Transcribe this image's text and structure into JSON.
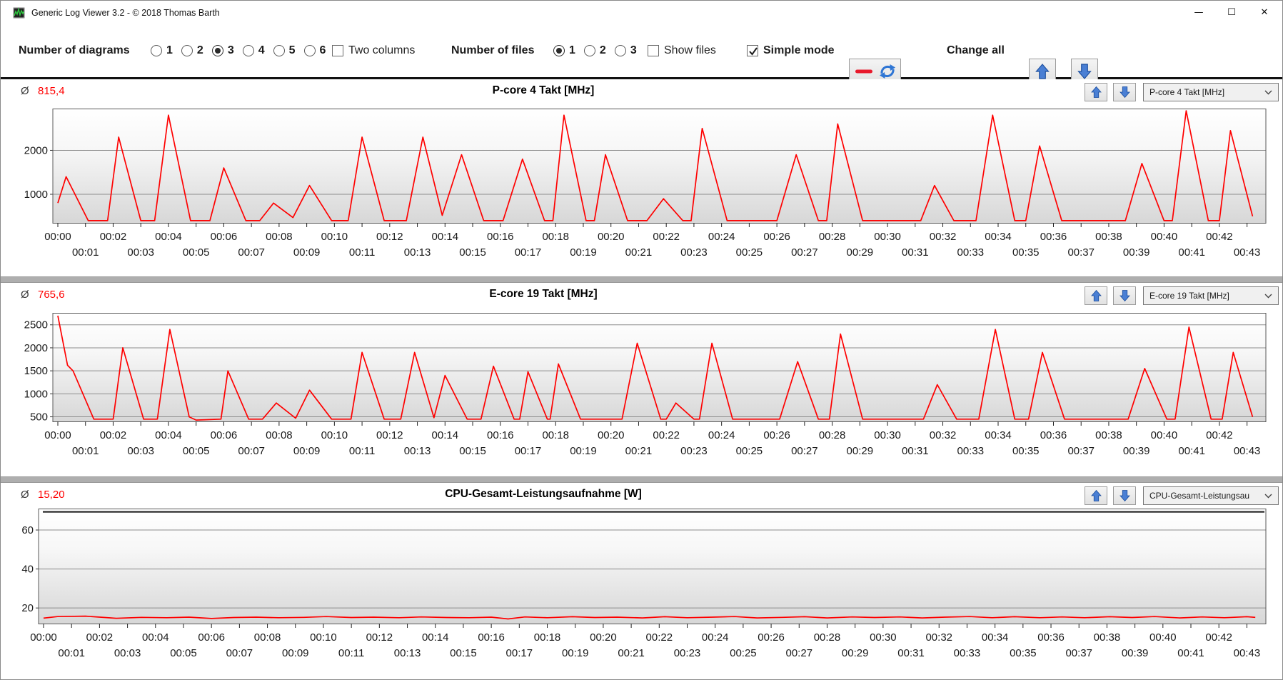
{
  "window": {
    "title": "Generic Log Viewer 3.2 - © 2018 Thomas Barth",
    "minimize_glyph": "—",
    "maximize_glyph": "☐",
    "close_glyph": "✕"
  },
  "toolbar": {
    "diagrams_label": "Number of diagrams",
    "diagram_options": [
      "1",
      "2",
      "3",
      "4",
      "5",
      "6"
    ],
    "diagrams_selected": "3",
    "two_columns_label": "Two columns",
    "two_columns_checked": false,
    "files_label": "Number of files",
    "file_options": [
      "1",
      "2",
      "3"
    ],
    "files_selected": "1",
    "show_files_label": "Show files",
    "show_files_checked": false,
    "simple_mode_label": "Simple mode",
    "simple_mode_checked": true,
    "change_all_label": "Change all"
  },
  "colors": {
    "series_red": "#ff0000",
    "avg_red": "#ff0000",
    "arrow_blue": "#4a7fd4",
    "grid_gray": "#8c8c8c",
    "plot_border": "#5a5a5a"
  },
  "x_axis": {
    "total_minutes": 43.5,
    "labels_row1": [
      "00:00",
      "00:02",
      "00:04",
      "00:06",
      "00:08",
      "00:10",
      "00:12",
      "00:14",
      "00:16",
      "00:18",
      "00:20",
      "00:22",
      "00:24",
      "00:26",
      "00:28",
      "00:30",
      "00:32",
      "00:34",
      "00:36",
      "00:38",
      "00:40",
      "00:42"
    ],
    "labels_row2": [
      "00:01",
      "00:03",
      "00:05",
      "00:07",
      "00:09",
      "00:11",
      "00:13",
      "00:15",
      "00:17",
      "00:19",
      "00:21",
      "00:23",
      "00:25",
      "00:27",
      "00:29",
      "00:31",
      "00:33",
      "00:35",
      "00:37",
      "00:39",
      "00:41",
      "00:43"
    ]
  },
  "chart_data": [
    {
      "type": "line",
      "title": "P-core 4 Takt [MHz]",
      "avg_symbol": "Ø",
      "average": "815,4",
      "dropdown_value": "P-core 4 Takt [MHz]",
      "ylim": [
        350,
        2950
      ],
      "y_ticks": [
        1000,
        2000
      ],
      "y_tick_labels": [
        "1000",
        "2000"
      ],
      "series": [
        {
          "name": "P-core 4 Takt",
          "color": "#ff0000",
          "points": [
            [
              0,
              800
            ],
            [
              0.3,
              1400
            ],
            [
              1.1,
              400
            ],
            [
              1.8,
              400
            ],
            [
              2.2,
              2300
            ],
            [
              3,
              400
            ],
            [
              3.5,
              400
            ],
            [
              4,
              2800
            ],
            [
              4.8,
              400
            ],
            [
              5.5,
              400
            ],
            [
              6,
              1600
            ],
            [
              6.8,
              400
            ],
            [
              7.3,
              400
            ],
            [
              7.8,
              800
            ],
            [
              8.5,
              470
            ],
            [
              9.1,
              1200
            ],
            [
              9.9,
              400
            ],
            [
              10.5,
              400
            ],
            [
              11,
              2300
            ],
            [
              11.8,
              400
            ],
            [
              12.6,
              400
            ],
            [
              13.2,
              2300
            ],
            [
              13.9,
              520
            ],
            [
              14.6,
              1900
            ],
            [
              15.4,
              400
            ],
            [
              16.1,
              400
            ],
            [
              16.8,
              1800
            ],
            [
              17.6,
              400
            ],
            [
              17.9,
              400
            ],
            [
              18.3,
              2800
            ],
            [
              19.1,
              400
            ],
            [
              19.4,
              400
            ],
            [
              19.8,
              1900
            ],
            [
              20.6,
              400
            ],
            [
              21.3,
              400
            ],
            [
              21.9,
              900
            ],
            [
              22.6,
              400
            ],
            [
              22.9,
              400
            ],
            [
              23.3,
              2500
            ],
            [
              24.2,
              400
            ],
            [
              26,
              400
            ],
            [
              26.7,
              1900
            ],
            [
              27.5,
              400
            ],
            [
              27.8,
              400
            ],
            [
              28.2,
              2600
            ],
            [
              29.1,
              400
            ],
            [
              31.2,
              400
            ],
            [
              31.7,
              1200
            ],
            [
              32.4,
              400
            ],
            [
              33.2,
              400
            ],
            [
              33.8,
              2800
            ],
            [
              34.6,
              400
            ],
            [
              35,
              400
            ],
            [
              35.5,
              2100
            ],
            [
              36.3,
              400
            ],
            [
              38.6,
              400
            ],
            [
              39.2,
              1700
            ],
            [
              40,
              400
            ],
            [
              40.3,
              400
            ],
            [
              40.8,
              2900
            ],
            [
              41.6,
              400
            ],
            [
              42,
              400
            ],
            [
              42.4,
              2450
            ],
            [
              43.2,
              500
            ]
          ]
        }
      ]
    },
    {
      "type": "line",
      "title": "E-core 19 Takt [MHz]",
      "avg_symbol": "Ø",
      "average": "765,6",
      "dropdown_value": "E-core 19 Takt [MHz]",
      "ylim": [
        400,
        2760
      ],
      "y_ticks": [
        500,
        1000,
        1500,
        2000,
        2500
      ],
      "y_tick_labels": [
        "500",
        "1000",
        "1500",
        "2000",
        "2500"
      ],
      "series": [
        {
          "name": "E-core 19 Takt",
          "color": "#ff0000",
          "points": [
            [
              0,
              2700
            ],
            [
              0.35,
              1620
            ],
            [
              0.55,
              1500
            ],
            [
              1.3,
              450
            ],
            [
              2,
              450
            ],
            [
              2.35,
              2000
            ],
            [
              3.1,
              450
            ],
            [
              3.6,
              450
            ],
            [
              4.05,
              2400
            ],
            [
              4.75,
              500
            ],
            [
              5,
              430
            ],
            [
              5.9,
              450
            ],
            [
              6.15,
              1500
            ],
            [
              6.9,
              450
            ],
            [
              7.4,
              450
            ],
            [
              7.9,
              800
            ],
            [
              8.6,
              470
            ],
            [
              9.1,
              1080
            ],
            [
              9.9,
              450
            ],
            [
              10.6,
              450
            ],
            [
              11,
              1900
            ],
            [
              11.8,
              450
            ],
            [
              12.4,
              450
            ],
            [
              12.9,
              1900
            ],
            [
              13.6,
              480
            ],
            [
              14,
              1400
            ],
            [
              14.8,
              450
            ],
            [
              15.3,
              450
            ],
            [
              15.75,
              1600
            ],
            [
              16.5,
              450
            ],
            [
              16.7,
              450
            ],
            [
              17,
              1480
            ],
            [
              17.7,
              450
            ],
            [
              17.8,
              450
            ],
            [
              18.1,
              1650
            ],
            [
              18.9,
              450
            ],
            [
              20.4,
              450
            ],
            [
              20.95,
              2100
            ],
            [
              21.8,
              450
            ],
            [
              22,
              450
            ],
            [
              22.35,
              800
            ],
            [
              23,
              450
            ],
            [
              23.2,
              450
            ],
            [
              23.65,
              2100
            ],
            [
              24.4,
              450
            ],
            [
              26.1,
              450
            ],
            [
              26.75,
              1700
            ],
            [
              27.5,
              450
            ],
            [
              27.9,
              450
            ],
            [
              28.3,
              2300
            ],
            [
              29.1,
              450
            ],
            [
              31.3,
              450
            ],
            [
              31.8,
              1200
            ],
            [
              32.5,
              450
            ],
            [
              33.3,
              450
            ],
            [
              33.9,
              2400
            ],
            [
              34.6,
              450
            ],
            [
              35.1,
              450
            ],
            [
              35.6,
              1900
            ],
            [
              36.4,
              450
            ],
            [
              38.7,
              450
            ],
            [
              39.3,
              1550
            ],
            [
              40.1,
              450
            ],
            [
              40.4,
              450
            ],
            [
              40.9,
              2450
            ],
            [
              41.7,
              450
            ],
            [
              42.1,
              450
            ],
            [
              42.5,
              1900
            ],
            [
              43.2,
              500
            ]
          ]
        }
      ]
    },
    {
      "type": "line",
      "title": "CPU-Gesamt-Leistungsaufnahme [W]",
      "avg_symbol": "Ø",
      "average": "15,20",
      "dropdown_value": "CPU-Gesamt-Leistungsau",
      "ylim": [
        12,
        71
      ],
      "y_ticks": [
        20,
        40,
        60
      ],
      "y_tick_labels": [
        "20",
        "40",
        "60"
      ],
      "top_line_value": 69.3,
      "series": [
        {
          "name": "CPU-Gesamt-Leistungsaufnahme",
          "color": "#ff0000",
          "points": [
            [
              0,
              14.8
            ],
            [
              0.5,
              15.6
            ],
            [
              1.5,
              15.8
            ],
            [
              2.2,
              15.1
            ],
            [
              2.6,
              14.7
            ],
            [
              3.5,
              15.2
            ],
            [
              4.4,
              15.0
            ],
            [
              5.2,
              15.3
            ],
            [
              6.0,
              14.6
            ],
            [
              6.8,
              15.1
            ],
            [
              7.6,
              15.3
            ],
            [
              8.4,
              15.0
            ],
            [
              9.3,
              15.2
            ],
            [
              10.1,
              15.6
            ],
            [
              11.0,
              15.1
            ],
            [
              11.8,
              15.3
            ],
            [
              12.7,
              15.0
            ],
            [
              13.5,
              15.4
            ],
            [
              14.4,
              15.1
            ],
            [
              15.2,
              15.0
            ],
            [
              16.0,
              15.3
            ],
            [
              16.6,
              14.4
            ],
            [
              17.2,
              15.4
            ],
            [
              18.0,
              15.0
            ],
            [
              18.9,
              15.5
            ],
            [
              19.7,
              15.1
            ],
            [
              20.5,
              15.3
            ],
            [
              21.4,
              14.9
            ],
            [
              22.2,
              15.5
            ],
            [
              23.0,
              15.0
            ],
            [
              23.9,
              15.3
            ],
            [
              24.7,
              15.6
            ],
            [
              25.5,
              14.9
            ],
            [
              26.4,
              15.2
            ],
            [
              27.2,
              15.5
            ],
            [
              28.0,
              14.9
            ],
            [
              28.9,
              15.4
            ],
            [
              29.7,
              15.1
            ],
            [
              30.6,
              15.4
            ],
            [
              31.4,
              14.9
            ],
            [
              32.2,
              15.3
            ],
            [
              33.1,
              15.6
            ],
            [
              33.9,
              15.0
            ],
            [
              34.7,
              15.5
            ],
            [
              35.6,
              15.0
            ],
            [
              36.4,
              15.4
            ],
            [
              37.2,
              15.0
            ],
            [
              38.1,
              15.5
            ],
            [
              38.9,
              15.1
            ],
            [
              39.7,
              15.6
            ],
            [
              40.6,
              14.9
            ],
            [
              41.4,
              15.4
            ],
            [
              42.2,
              15.0
            ],
            [
              43.0,
              15.5
            ],
            [
              43.3,
              15.2
            ]
          ]
        }
      ]
    }
  ]
}
